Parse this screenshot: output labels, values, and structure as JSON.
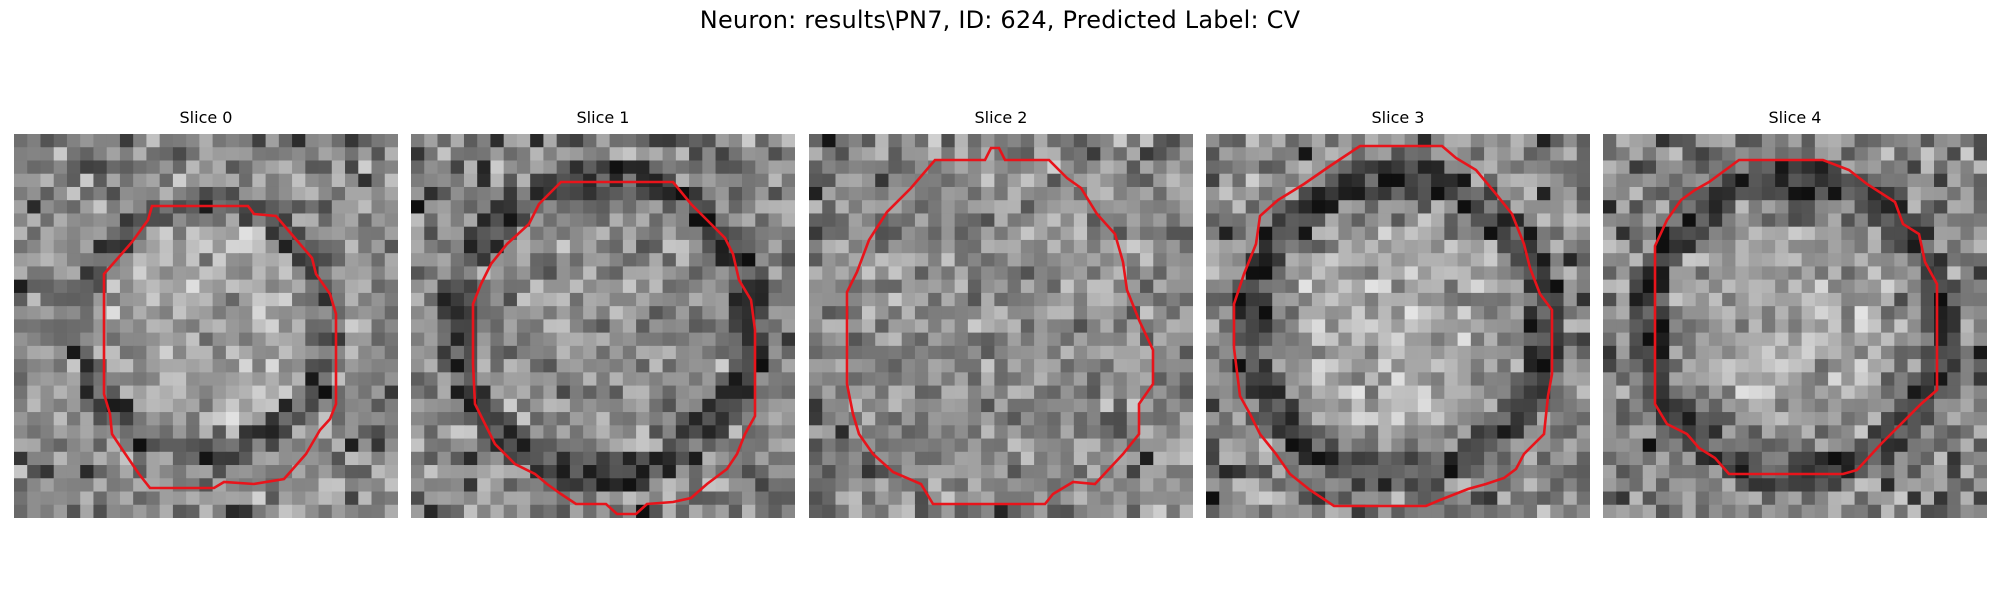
{
  "figure": {
    "title": "Neuron: results\\PN7, ID: 624, Predicted Label: CV",
    "contour_color": "#e8141b"
  },
  "panels": [
    {
      "title": "Slice 0",
      "seed": 11,
      "ring": "thin",
      "bright_center": true
    },
    {
      "title": "Slice 1",
      "seed": 23,
      "ring": "dark",
      "bright_center": false
    },
    {
      "title": "Slice 2",
      "seed": 37,
      "ring": "none",
      "bright_center": false
    },
    {
      "title": "Slice 3",
      "seed": 41,
      "ring": "dark",
      "bright_center": true
    },
    {
      "title": "Slice 4",
      "seed": 59,
      "ring": "dark",
      "bright_center": true
    }
  ]
}
